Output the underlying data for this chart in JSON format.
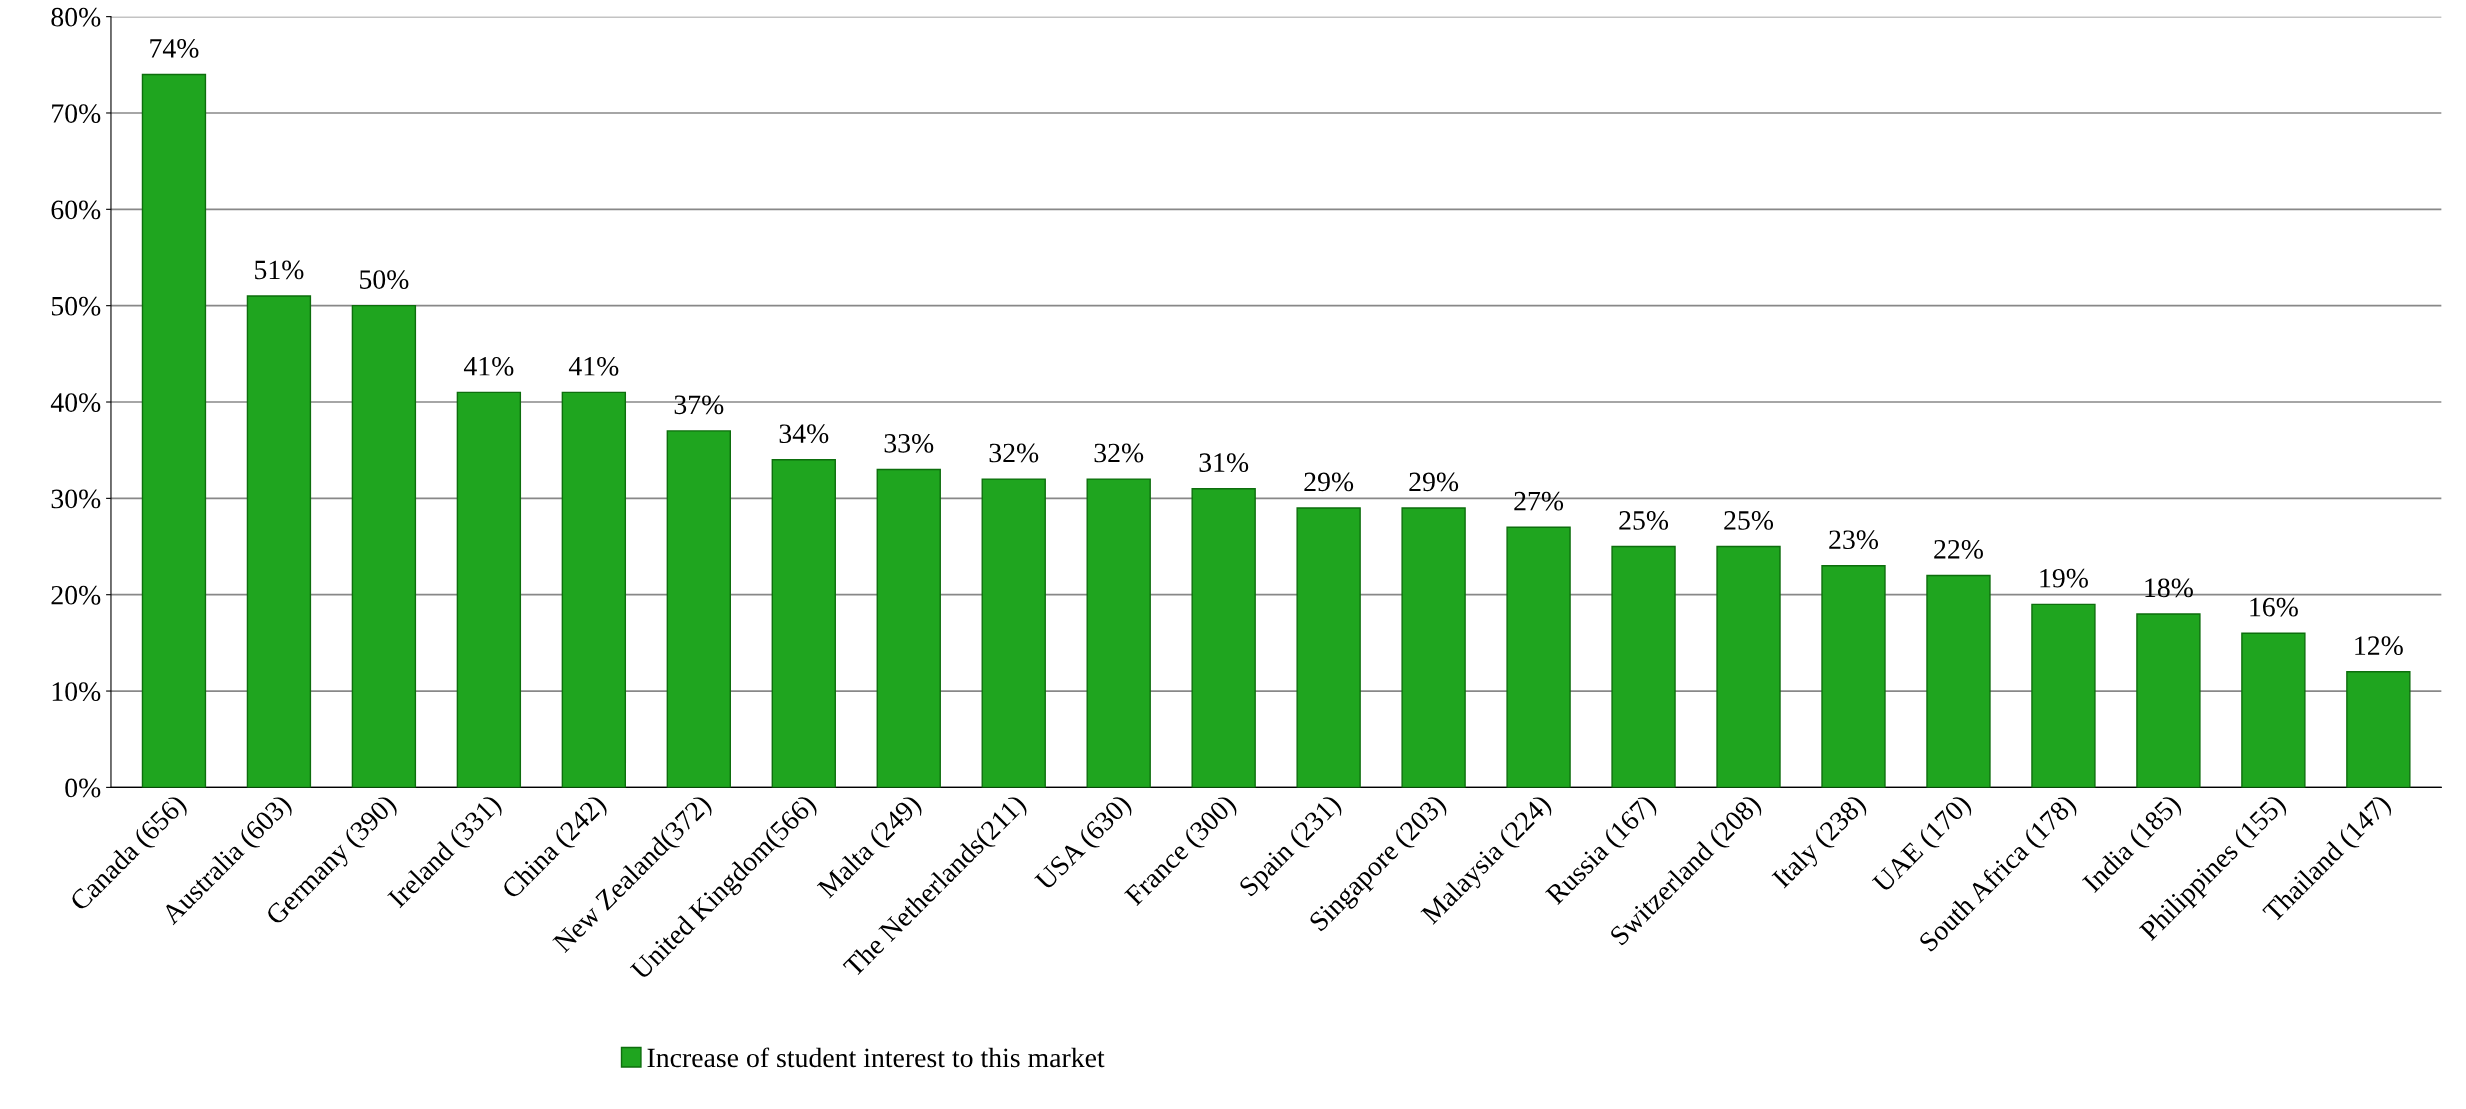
{
  "chart_data": {
    "type": "bar",
    "categories": [
      "Canada (656)",
      "Australia (603)",
      "Germany (390)",
      "Ireland (331)",
      "China (242)",
      "New Zealand(372)",
      "United Kingdom(566)",
      "Malta (249)",
      "The Netherlands(211)",
      "USA (630)",
      "France (300)",
      "Spain (231)",
      "Singapore (203)",
      "Malaysia (224)",
      "Russia (167)",
      "Switzerland (208)",
      "Italy (238)",
      "UAE (170)",
      "South Africa (178)",
      "India (185)",
      "Philippines (155)",
      "Thailand (147)"
    ],
    "series": [
      {
        "name": "Increase of student interest to this market",
        "color": "#1fa51f",
        "values": [
          74,
          51,
          50,
          41,
          41,
          37,
          34,
          33,
          32,
          32,
          31,
          29,
          29,
          27,
          25,
          25,
          23,
          22,
          19,
          18,
          16,
          12
        ],
        "value_labels": [
          "74%",
          "51%",
          "50%",
          "41%",
          "41%",
          "37%",
          "34%",
          "33%",
          "32%",
          "32%",
          "31%",
          "29%",
          "29%",
          "27%",
          "25%",
          "25%",
          "23%",
          "22%",
          "19%",
          "18%",
          "16%",
          "12%"
        ]
      }
    ],
    "ylim": [
      0,
      80
    ],
    "yticks": [
      {
        "value": 0,
        "label": "0%"
      },
      {
        "value": 10,
        "label": "10%"
      },
      {
        "value": 20,
        "label": "20%"
      },
      {
        "value": 30,
        "label": "30%"
      },
      {
        "value": 40,
        "label": "40%"
      },
      {
        "value": 50,
        "label": "50%"
      },
      {
        "value": 60,
        "label": "60%"
      },
      {
        "value": 70,
        "label": "70%"
      },
      {
        "value": 80,
        "label": "80%"
      }
    ],
    "grid": "y",
    "legend": "bottom"
  }
}
